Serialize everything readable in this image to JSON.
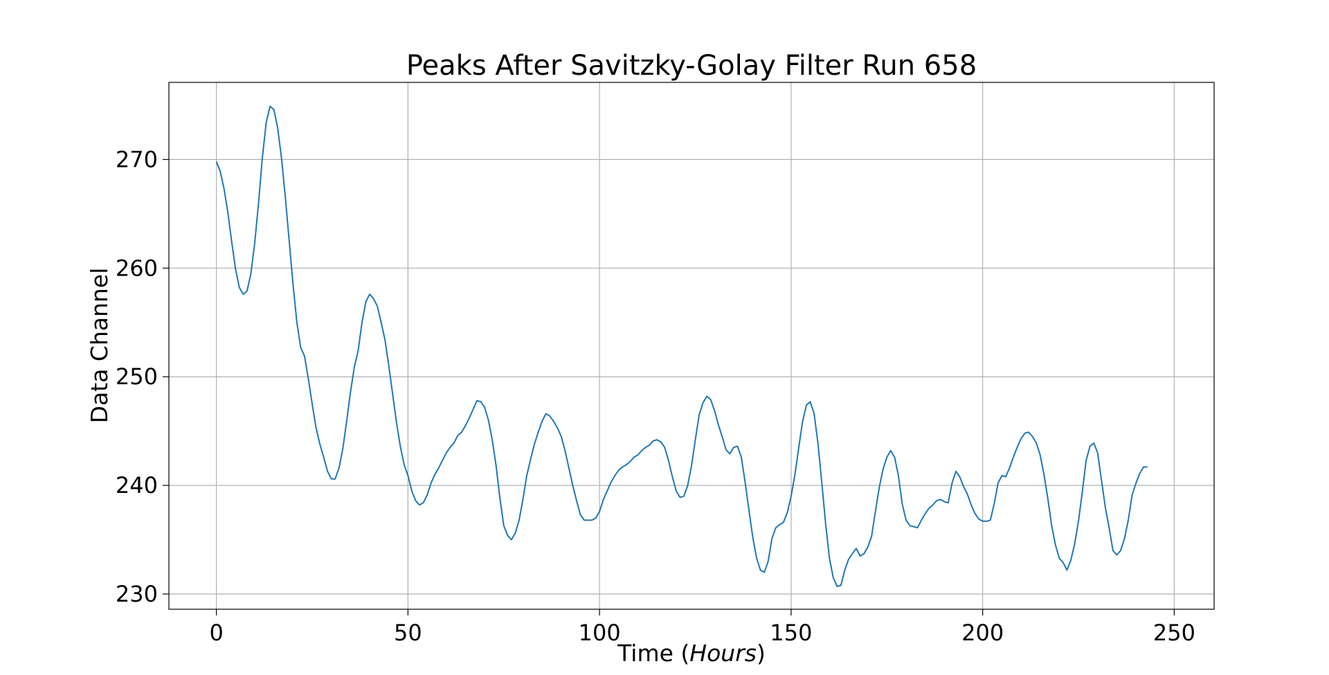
{
  "chart_data": {
    "type": "line",
    "title": "Peaks After Savitzky-Golay Filter Run 658",
    "xlabel_prefix": "Time (",
    "xlabel_italic": "Hours",
    "xlabel_suffix": ")",
    "ylabel": "Data Channel",
    "xlim": [
      -12.4,
      260.4
    ],
    "ylim": [
      228.6,
      277.1
    ],
    "xticks": [
      0,
      50,
      100,
      150,
      200,
      250
    ],
    "yticks": [
      230,
      240,
      250,
      260,
      270
    ],
    "grid": true,
    "line_color": "#1f77b4",
    "series": [
      {
        "points": [
          [
            0,
            269.8
          ],
          [
            1,
            268.9
          ],
          [
            2,
            267.3
          ],
          [
            3,
            265.1
          ],
          [
            4,
            262.4
          ],
          [
            5,
            259.9
          ],
          [
            6,
            258.2
          ],
          [
            7,
            257.6
          ],
          [
            8,
            257.9
          ],
          [
            9,
            259.5
          ],
          [
            10,
            262.3
          ],
          [
            11,
            266.0
          ],
          [
            12,
            270.2
          ],
          [
            13,
            273.4
          ],
          [
            14,
            274.9
          ],
          [
            15,
            274.6
          ],
          [
            16,
            272.9
          ],
          [
            17,
            270.1
          ],
          [
            18,
            266.5
          ],
          [
            19,
            262.5
          ],
          [
            20,
            258.5
          ],
          [
            21,
            255.0
          ],
          [
            22,
            252.7
          ],
          [
            23,
            251.9
          ],
          [
            24,
            249.8
          ],
          [
            25,
            247.5
          ],
          [
            26,
            245.3
          ],
          [
            27,
            243.8
          ],
          [
            28,
            242.6
          ],
          [
            29,
            241.3
          ],
          [
            30,
            240.6
          ],
          [
            31,
            240.6
          ],
          [
            32,
            241.6
          ],
          [
            33,
            243.4
          ],
          [
            34,
            245.9
          ],
          [
            35,
            248.6
          ],
          [
            36,
            250.9
          ],
          [
            37,
            252.4
          ],
          [
            38,
            255.0
          ],
          [
            39,
            256.9
          ],
          [
            40,
            257.6
          ],
          [
            41,
            257.2
          ],
          [
            42,
            256.5
          ],
          [
            43,
            255.0
          ],
          [
            44,
            253.4
          ],
          [
            45,
            251.0
          ],
          [
            46,
            248.4
          ],
          [
            47,
            245.8
          ],
          [
            48,
            243.6
          ],
          [
            49,
            241.9
          ],
          [
            50,
            240.9
          ],
          [
            51,
            239.5
          ],
          [
            52,
            238.6
          ],
          [
            53,
            238.2
          ],
          [
            54,
            238.4
          ],
          [
            55,
            239.1
          ],
          [
            56,
            240.2
          ],
          [
            57,
            241.0
          ],
          [
            58,
            241.6
          ],
          [
            59,
            242.3
          ],
          [
            60,
            243.0
          ],
          [
            61,
            243.5
          ],
          [
            62,
            243.9
          ],
          [
            63,
            244.6
          ],
          [
            64,
            244.9
          ],
          [
            65,
            245.5
          ],
          [
            66,
            246.2
          ],
          [
            67,
            247.0
          ],
          [
            68,
            247.8
          ],
          [
            69,
            247.7
          ],
          [
            70,
            247.2
          ],
          [
            71,
            246.0
          ],
          [
            72,
            244.2
          ],
          [
            73,
            241.8
          ],
          [
            74,
            238.8
          ],
          [
            75,
            236.3
          ],
          [
            76,
            235.4
          ],
          [
            77,
            235.0
          ],
          [
            78,
            235.6
          ],
          [
            79,
            236.8
          ],
          [
            80,
            238.7
          ],
          [
            81,
            240.9
          ],
          [
            82,
            242.4
          ],
          [
            83,
            243.8
          ],
          [
            84,
            244.9
          ],
          [
            85,
            245.9
          ],
          [
            86,
            246.6
          ],
          [
            87,
            246.4
          ],
          [
            88,
            245.9
          ],
          [
            89,
            245.3
          ],
          [
            90,
            244.5
          ],
          [
            91,
            243.2
          ],
          [
            92,
            241.6
          ],
          [
            93,
            240.0
          ],
          [
            94,
            238.6
          ],
          [
            95,
            237.3
          ],
          [
            96,
            236.8
          ],
          [
            97,
            236.8
          ],
          [
            98,
            236.8
          ],
          [
            99,
            237.0
          ],
          [
            100,
            237.6
          ],
          [
            101,
            238.7
          ],
          [
            102,
            239.5
          ],
          [
            103,
            240.3
          ],
          [
            104,
            240.9
          ],
          [
            105,
            241.4
          ],
          [
            106,
            241.7
          ],
          [
            107,
            241.9
          ],
          [
            108,
            242.2
          ],
          [
            109,
            242.6
          ],
          [
            110,
            242.8
          ],
          [
            111,
            243.2
          ],
          [
            112,
            243.5
          ],
          [
            113,
            243.7
          ],
          [
            114,
            244.1
          ],
          [
            115,
            244.2
          ],
          [
            116,
            244.0
          ],
          [
            117,
            243.5
          ],
          [
            118,
            242.3
          ],
          [
            119,
            240.8
          ],
          [
            120,
            239.5
          ],
          [
            121,
            238.9
          ],
          [
            122,
            239.0
          ],
          [
            123,
            240.0
          ],
          [
            124,
            241.8
          ],
          [
            125,
            244.2
          ],
          [
            126,
            246.5
          ],
          [
            127,
            247.6
          ],
          [
            128,
            248.2
          ],
          [
            129,
            247.9
          ],
          [
            130,
            246.9
          ],
          [
            131,
            245.6
          ],
          [
            132,
            244.5
          ],
          [
            133,
            243.3
          ],
          [
            134,
            242.9
          ],
          [
            135,
            243.5
          ],
          [
            136,
            243.6
          ],
          [
            137,
            242.6
          ],
          [
            138,
            240.3
          ],
          [
            139,
            237.7
          ],
          [
            140,
            235.2
          ],
          [
            141,
            233.3
          ],
          [
            142,
            232.2
          ],
          [
            143,
            232.0
          ],
          [
            144,
            233.0
          ],
          [
            145,
            235.1
          ],
          [
            146,
            236.1
          ],
          [
            147,
            236.4
          ],
          [
            148,
            236.6
          ],
          [
            149,
            237.5
          ],
          [
            150,
            239.0
          ],
          [
            151,
            241.0
          ],
          [
            152,
            243.5
          ],
          [
            153,
            245.9
          ],
          [
            154,
            247.4
          ],
          [
            155,
            247.7
          ],
          [
            156,
            246.6
          ],
          [
            157,
            243.9
          ],
          [
            158,
            240.3
          ],
          [
            159,
            236.5
          ],
          [
            160,
            233.3
          ],
          [
            161,
            231.5
          ],
          [
            162,
            230.7
          ],
          [
            163,
            230.8
          ],
          [
            164,
            232.2
          ],
          [
            165,
            233.2
          ],
          [
            166,
            233.7
          ],
          [
            167,
            234.2
          ],
          [
            168,
            233.5
          ],
          [
            169,
            233.7
          ],
          [
            170,
            234.3
          ],
          [
            171,
            235.3
          ],
          [
            172,
            237.6
          ],
          [
            173,
            239.8
          ],
          [
            174,
            241.5
          ],
          [
            175,
            242.6
          ],
          [
            176,
            243.2
          ],
          [
            177,
            242.6
          ],
          [
            178,
            240.9
          ],
          [
            179,
            238.3
          ],
          [
            180,
            236.8
          ],
          [
            181,
            236.3
          ],
          [
            182,
            236.2
          ],
          [
            183,
            236.1
          ],
          [
            184,
            236.8
          ],
          [
            185,
            237.4
          ],
          [
            186,
            237.9
          ],
          [
            187,
            238.2
          ],
          [
            188,
            238.6
          ],
          [
            189,
            238.7
          ],
          [
            190,
            238.5
          ],
          [
            191,
            238.4
          ],
          [
            192,
            240.2
          ],
          [
            193,
            241.3
          ],
          [
            194,
            240.8
          ],
          [
            195,
            239.9
          ],
          [
            196,
            239.2
          ],
          [
            197,
            238.2
          ],
          [
            198,
            237.4
          ],
          [
            199,
            236.9
          ],
          [
            200,
            236.7
          ],
          [
            201,
            236.7
          ],
          [
            202,
            236.8
          ],
          [
            203,
            238.3
          ],
          [
            204,
            240.2
          ],
          [
            205,
            240.9
          ],
          [
            206,
            240.8
          ],
          [
            207,
            241.6
          ],
          [
            208,
            242.6
          ],
          [
            209,
            243.5
          ],
          [
            210,
            244.3
          ],
          [
            211,
            244.8
          ],
          [
            212,
            244.9
          ],
          [
            213,
            244.5
          ],
          [
            214,
            243.9
          ],
          [
            215,
            242.8
          ],
          [
            216,
            241.0
          ],
          [
            217,
            238.8
          ],
          [
            218,
            236.3
          ],
          [
            219,
            234.5
          ],
          [
            220,
            233.3
          ],
          [
            221,
            232.9
          ],
          [
            222,
            232.2
          ],
          [
            223,
            233.1
          ],
          [
            224,
            234.6
          ],
          [
            225,
            236.7
          ],
          [
            226,
            239.4
          ],
          [
            227,
            242.3
          ],
          [
            228,
            243.6
          ],
          [
            229,
            243.9
          ],
          [
            230,
            243.0
          ],
          [
            231,
            240.5
          ],
          [
            232,
            238.0
          ],
          [
            233,
            236.1
          ],
          [
            234,
            234.0
          ],
          [
            235,
            233.6
          ],
          [
            236,
            234.0
          ],
          [
            237,
            235.1
          ],
          [
            238,
            236.8
          ],
          [
            239,
            239.1
          ],
          [
            240,
            240.2
          ],
          [
            241,
            241.1
          ],
          [
            242,
            241.7
          ],
          [
            243,
            241.7
          ]
        ]
      }
    ]
  }
}
